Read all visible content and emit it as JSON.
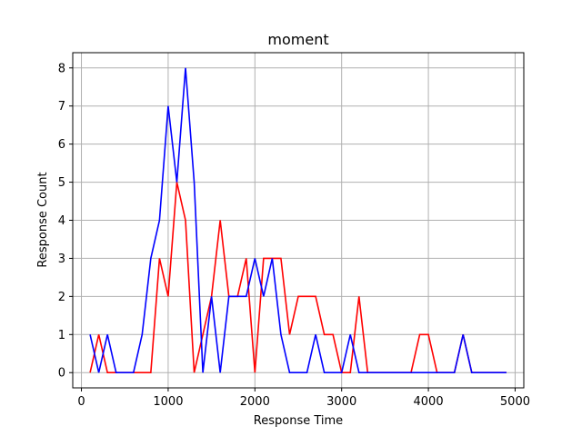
{
  "chart_data": {
    "type": "line",
    "title": "moment",
    "xlabel": "Response Time",
    "ylabel": "Response Count",
    "xlim": [
      -100,
      5100
    ],
    "ylim": [
      -0.4,
      8.4
    ],
    "xticks": [
      0,
      1000,
      2000,
      3000,
      4000,
      5000
    ],
    "yticks": [
      0,
      1,
      2,
      3,
      4,
      5,
      6,
      7,
      8
    ],
    "grid": true,
    "legend": "none",
    "series": [
      {
        "color": "#ff0000",
        "x": [
          100,
          200,
          300,
          400,
          500,
          600,
          700,
          800,
          900,
          1000,
          1100,
          1200,
          1300,
          1400,
          1500,
          1600,
          1700,
          1800,
          1900,
          2000,
          2100,
          2200,
          2300,
          2400,
          2500,
          2600,
          2700,
          2800,
          2900,
          3000,
          3100,
          3200,
          3300,
          3400,
          3500,
          3600,
          3700,
          3800,
          3900,
          4000,
          4100,
          4200,
          4300,
          4400,
          4500,
          4600,
          4700,
          4800,
          4900
        ],
        "y": [
          0,
          1,
          0,
          0,
          0,
          0,
          0,
          0,
          3,
          2,
          5,
          4,
          0,
          1,
          2,
          4,
          2,
          2,
          3,
          0,
          3,
          3,
          3,
          1,
          2,
          2,
          2,
          1,
          1,
          0,
          0,
          2,
          0,
          0,
          0,
          0,
          0,
          0,
          1,
          1,
          0,
          0,
          0,
          1,
          0,
          0,
          0,
          0,
          0
        ]
      },
      {
        "color": "#0000ff",
        "x": [
          100,
          200,
          300,
          400,
          500,
          600,
          700,
          800,
          900,
          1000,
          1100,
          1200,
          1300,
          1400,
          1500,
          1600,
          1700,
          1800,
          1900,
          2000,
          2100,
          2200,
          2300,
          2400,
          2500,
          2600,
          2700,
          2800,
          2900,
          3000,
          3100,
          3200,
          3300,
          3400,
          3500,
          3600,
          3700,
          3800,
          3900,
          4000,
          4100,
          4200,
          4300,
          4400,
          4500,
          4600,
          4700,
          4800,
          4900
        ],
        "y": [
          1,
          0,
          1,
          0,
          0,
          0,
          1,
          3,
          4,
          7,
          5,
          8,
          5,
          0,
          2,
          0,
          2,
          2,
          2,
          3,
          2,
          3,
          1,
          0,
          0,
          0,
          1,
          0,
          0,
          0,
          1,
          0,
          0,
          0,
          0,
          0,
          0,
          0,
          0,
          0,
          0,
          0,
          0,
          1,
          0,
          0,
          0,
          0,
          0
        ]
      }
    ]
  }
}
